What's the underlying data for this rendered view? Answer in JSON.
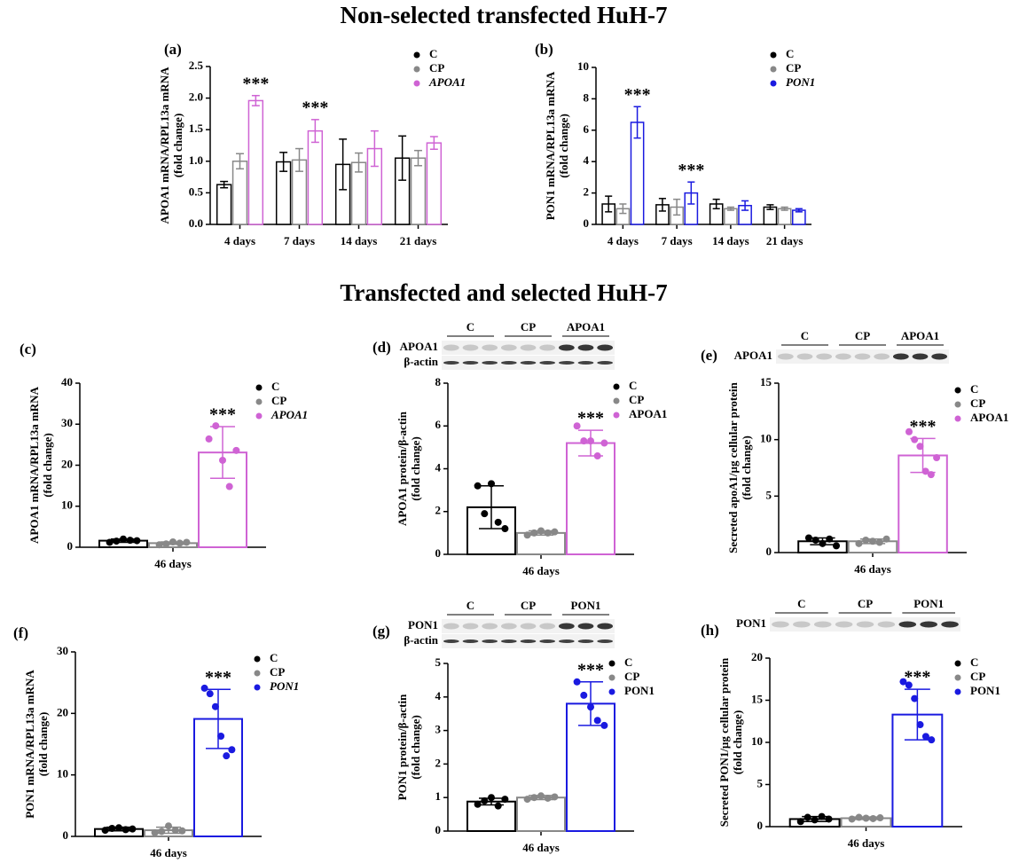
{
  "titles": [
    "Non-selected transfected HuH-7",
    "Transfected and selected HuH-7"
  ],
  "chart_data": [
    {
      "type": "bar",
      "label": "(a)",
      "ylabel": [
        "APOA1 mRNA/RPL13a mRNA",
        "(fold change)"
      ],
      "categories": [
        "4 days",
        "7 days",
        "14 days",
        "21 days"
      ],
      "ylim": [
        0,
        2.5
      ],
      "yticks": [
        {
          "value": 0,
          "label": "0.0"
        },
        0.5,
        {
          "value": 1,
          "label": "1.0"
        },
        1.5,
        {
          "value": 2,
          "label": "2.0"
        },
        2.5
      ],
      "series": [
        {
          "name": "C",
          "color": "#000000",
          "values": [
            0.63,
            0.99,
            0.95,
            1.05
          ],
          "errors": [
            0.05,
            0.15,
            0.4,
            0.35
          ]
        },
        {
          "name": "CP",
          "color": "#888888",
          "values": [
            1.0,
            1.02,
            0.98,
            1.05
          ],
          "errors": [
            0.12,
            0.18,
            0.15,
            0.12
          ]
        },
        {
          "name": "APOA1",
          "italic": true,
          "color": "#cf63d4",
          "values": [
            1.96,
            1.48,
            1.2,
            1.29
          ],
          "errors": [
            0.08,
            0.18,
            0.28,
            0.1
          ],
          "stars": [
            "***",
            "***",
            null,
            null
          ]
        }
      ]
    },
    {
      "type": "bar",
      "label": "(b)",
      "ylabel": [
        "PON1 mRNA/RPL13a mRNA",
        "(fold change)"
      ],
      "categories": [
        "4 days",
        "7 days",
        "14 days",
        "21 days"
      ],
      "ylim": [
        0,
        10
      ],
      "yticks": [
        0,
        2,
        4,
        6,
        8,
        10
      ],
      "series": [
        {
          "name": "C",
          "color": "#000000",
          "values": [
            1.3,
            1.25,
            1.3,
            1.1
          ],
          "errors": [
            0.5,
            0.4,
            0.3,
            0.15
          ]
        },
        {
          "name": "CP",
          "color": "#888888",
          "values": [
            1.0,
            1.1,
            1.0,
            1.0
          ],
          "errors": [
            0.3,
            0.5,
            0.1,
            0.1
          ]
        },
        {
          "name": "PON1",
          "italic": true,
          "color": "#1a1ae0",
          "values": [
            6.5,
            2.0,
            1.2,
            0.9
          ],
          "errors": [
            1.0,
            0.7,
            0.3,
            0.1
          ],
          "stars": [
            "***",
            "***",
            null,
            null
          ]
        }
      ]
    },
    {
      "type": "bar",
      "label": "(c)",
      "ylabel": [
        "APOA1 mRNA/RPL13a mRNA",
        "(fold change)"
      ],
      "categories": [
        "46 days"
      ],
      "ylim": [
        0,
        40
      ],
      "yticks": [
        0,
        10,
        20,
        30,
        40
      ],
      "series": [
        {
          "name": "C",
          "color": "#000000",
          "values": [
            1.6
          ],
          "errors": [
            0.4
          ],
          "points": [
            [
              1.2,
              1.5,
              2.0,
              1.7,
              1.6
            ]
          ]
        },
        {
          "name": "CP",
          "color": "#888888",
          "values": [
            1.0
          ],
          "errors": [
            0.3
          ],
          "points": [
            [
              0.6,
              0.8,
              1.3,
              1.0,
              1.2
            ]
          ]
        },
        {
          "name": "APOA1",
          "italic": true,
          "color": "#cf63d4",
          "values": [
            23.1
          ],
          "errors": [
            6.3
          ],
          "stars": [
            "***"
          ],
          "points": [
            [
              26.4,
              29.6,
              21.2,
              14.8,
              23.6
            ]
          ]
        }
      ]
    },
    {
      "type": "bar",
      "label": "(d)",
      "ylabel": [
        "APOA1 protein/β-actin",
        "(fold change)"
      ],
      "blot": {
        "lanes": [
          "C",
          "CP",
          "APOA1"
        ],
        "rows": [
          "APOA1",
          "β-actin"
        ]
      },
      "categories": [
        "46 days"
      ],
      "ylim": [
        0,
        8
      ],
      "yticks": [
        0,
        2,
        4,
        6,
        8
      ],
      "series": [
        {
          "name": "C",
          "color": "#000000",
          "values": [
            2.2
          ],
          "errors": [
            1.0
          ],
          "points": [
            [
              3.2,
              1.9,
              3.3,
              1.5,
              1.2
            ]
          ]
        },
        {
          "name": "CP",
          "color": "#888888",
          "values": [
            1.0
          ],
          "errors": [
            0.1
          ],
          "points": [
            [
              0.9,
              1.0,
              1.1,
              1.0,
              1.05
            ]
          ]
        },
        {
          "name": "APOA1",
          "color": "#cf63d4",
          "values": [
            5.2
          ],
          "errors": [
            0.6
          ],
          "stars": [
            "***"
          ],
          "points": [
            [
              6.0,
              5.3,
              5.3,
              4.6,
              5.2
            ]
          ]
        }
      ]
    },
    {
      "type": "bar",
      "label": "(e)",
      "ylabel": [
        "Secreted apoA1/µg cellular protein",
        "(fold change)"
      ],
      "blot": {
        "lanes": [
          "C",
          "CP",
          "APOA1"
        ],
        "rows": [
          "APOA1"
        ]
      },
      "categories": [
        "46 days"
      ],
      "ylim": [
        0,
        15
      ],
      "yticks": [
        0,
        5,
        10,
        15
      ],
      "series": [
        {
          "name": "C",
          "color": "#000000",
          "values": [
            1.0
          ],
          "errors": [
            0.3
          ],
          "points": [
            [
              1.3,
              1.1,
              0.8,
              1.2,
              0.6
            ]
          ]
        },
        {
          "name": "CP",
          "color": "#888888",
          "values": [
            1.0
          ],
          "errors": [
            0.2
          ],
          "points": [
            [
              0.8,
              1.1,
              1.0,
              0.9,
              1.2
            ]
          ]
        },
        {
          "name": "APOA1",
          "color": "#cf63d4",
          "values": [
            8.6
          ],
          "errors": [
            1.5
          ],
          "stars": [
            "***"
          ],
          "points": [
            [
              10.7,
              10.0,
              9.4,
              7.2,
              6.9,
              8.4
            ]
          ]
        }
      ]
    },
    {
      "type": "bar",
      "label": "(f)",
      "ylabel": [
        "PON1 mRNA/RPL13a mRNA",
        "(fold change)"
      ],
      "categories": [
        "46 days"
      ],
      "ylim": [
        0,
        30
      ],
      "yticks": [
        0,
        10,
        20,
        30
      ],
      "series": [
        {
          "name": "C",
          "color": "#000000",
          "values": [
            1.2
          ],
          "errors": [
            0.3
          ],
          "points": [
            [
              1.0,
              1.3,
              1.4,
              1.1,
              1.2
            ]
          ]
        },
        {
          "name": "CP",
          "color": "#888888",
          "values": [
            1.0
          ],
          "errors": [
            0.5
          ],
          "points": [
            [
              0.6,
              0.8,
              1.7,
              1.0,
              0.9
            ]
          ]
        },
        {
          "name": "PON1",
          "italic": true,
          "color": "#1a1ae0",
          "values": [
            19.1
          ],
          "errors": [
            4.8
          ],
          "stars": [
            "***"
          ],
          "points": [
            [
              24.1,
              23.2,
              21.1,
              16.3,
              13.1,
              14.1
            ]
          ]
        }
      ]
    },
    {
      "type": "bar",
      "label": "(g)",
      "ylabel": [
        "PON1 protein/β-actin",
        "(fold change)"
      ],
      "blot": {
        "lanes": [
          "C",
          "CP",
          "PON1"
        ],
        "rows": [
          "PON1",
          "β-actin"
        ]
      },
      "categories": [
        "46 days"
      ],
      "ylim": [
        0,
        5
      ],
      "yticks": [
        0,
        1,
        2,
        3,
        4,
        5
      ],
      "series": [
        {
          "name": "C",
          "color": "#000000",
          "values": [
            0.88
          ],
          "errors": [
            0.1
          ],
          "points": [
            [
              0.8,
              0.9,
              1.0,
              0.75,
              0.95
            ]
          ]
        },
        {
          "name": "CP",
          "color": "#888888",
          "values": [
            1.0
          ],
          "errors": [
            0.06
          ],
          "points": [
            [
              0.95,
              1.0,
              1.05,
              0.98,
              1.02
            ]
          ]
        },
        {
          "name": "PON1",
          "color": "#1a1ae0",
          "values": [
            3.8
          ],
          "errors": [
            0.65
          ],
          "stars": [
            "***"
          ],
          "points": [
            [
              4.45,
              4.05,
              3.7,
              3.3,
              3.15
            ]
          ]
        }
      ]
    },
    {
      "type": "bar",
      "label": "(h)",
      "ylabel": [
        "Secreted PON1/µg cellular protein",
        "(fold change)"
      ],
      "blot": {
        "lanes": [
          "C",
          "CP",
          "PON1"
        ],
        "rows": [
          "PON1"
        ]
      },
      "categories": [
        "46 days"
      ],
      "ylim": [
        0,
        20
      ],
      "yticks": [
        0,
        5,
        10,
        15,
        20
      ],
      "series": [
        {
          "name": "C",
          "color": "#000000",
          "values": [
            0.9
          ],
          "errors": [
            0.3
          ],
          "points": [
            [
              0.6,
              1.1,
              0.8,
              1.2,
              0.9
            ]
          ]
        },
        {
          "name": "CP",
          "color": "#888888",
          "values": [
            1.0
          ],
          "errors": [
            0.15
          ],
          "points": [
            [
              0.9,
              1.1,
              1.0,
              0.95,
              1.05
            ]
          ]
        },
        {
          "name": "PON1",
          "color": "#1a1ae0",
          "values": [
            13.3
          ],
          "errors": [
            3.0
          ],
          "stars": [
            "***"
          ],
          "points": [
            [
              17.2,
              16.8,
              15.2,
              12.1,
              10.7,
              10.3
            ]
          ]
        }
      ]
    }
  ]
}
